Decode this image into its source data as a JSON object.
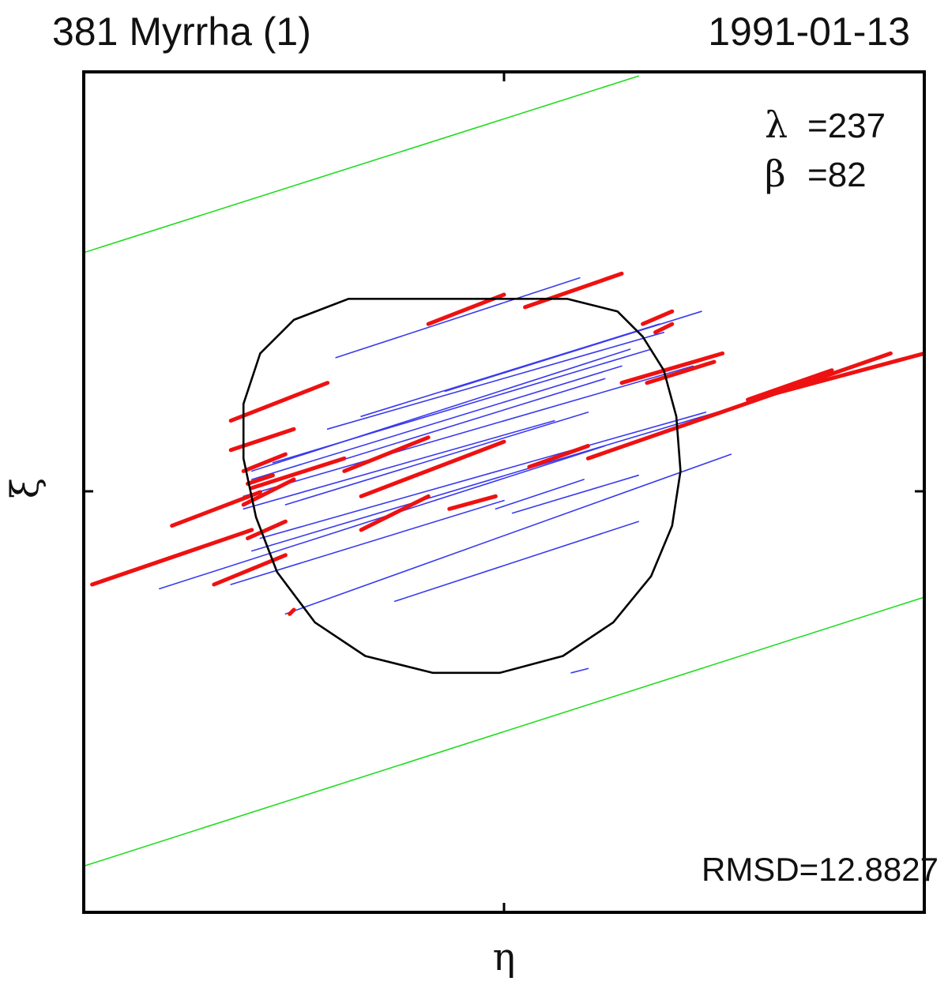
{
  "header": {
    "title_left": "381 Myrrha  (1)",
    "title_right": "1991-01-13"
  },
  "chart_data": {
    "type": "line",
    "title": "381 Myrrha  (1)",
    "date": "1991-01-13",
    "xlabel": "η",
    "ylabel": "ξ",
    "grid": false,
    "tick_labels": false,
    "annotations": {
      "lambda_label": "λ",
      "lambda_value": "=237",
      "beta_label": "β",
      "beta_value": "=82",
      "rmsd": "RMSD=12.8827"
    },
    "xlim": [
      -100,
      100
    ],
    "ylim": [
      -100,
      100
    ],
    "colors": {
      "profile": "#000000",
      "chord_fit": "#3a3aee",
      "chord_error": "#ee1111",
      "limits": "#22dd22"
    },
    "profile": [
      [
        15,
        46
      ],
      [
        27,
        43
      ],
      [
        33,
        37
      ],
      [
        38,
        29
      ],
      [
        41,
        18
      ],
      [
        42,
        5
      ],
      [
        40,
        -8
      ],
      [
        35,
        -20
      ],
      [
        26,
        -31
      ],
      [
        14,
        -39
      ],
      [
        -1,
        -43
      ],
      [
        -17,
        -43
      ],
      [
        -33,
        -39
      ],
      [
        -45,
        -31
      ],
      [
        -54,
        -19
      ],
      [
        -59,
        -6
      ],
      [
        -62,
        8
      ],
      [
        -62,
        21
      ],
      [
        -58,
        33
      ],
      [
        -50,
        41
      ],
      [
        -37,
        46
      ],
      [
        -15,
        46
      ],
      [
        15,
        46
      ]
    ],
    "limit_lines": [
      {
        "x": [
          -100,
          32
        ],
        "y": [
          57,
          99
        ]
      },
      {
        "x": [
          -100,
          100
        ],
        "y": [
          -89,
          -25
        ]
      }
    ],
    "chords": [
      {
        "x": [
          -40,
          18
        ],
        "y": [
          32,
          51
        ]
      },
      {
        "x": [
          -14,
          47
        ],
        "y": [
          24,
          43
        ]
      },
      {
        "x": [
          -42,
          38
        ],
        "y": [
          15,
          38
        ]
      },
      {
        "x": [
          -34,
          37
        ],
        "y": [
          18,
          40
        ]
      },
      {
        "x": [
          -55,
          35
        ],
        "y": [
          7,
          34
        ]
      },
      {
        "x": [
          -60,
          30
        ],
        "y": [
          5,
          34
        ]
      },
      {
        "x": [
          -60,
          28
        ],
        "y": [
          3,
          30
        ]
      },
      {
        "x": [
          -60,
          24
        ],
        "y": [
          1,
          27
        ]
      },
      {
        "x": [
          -62,
          45
        ],
        "y": [
          -1,
          30
        ]
      },
      {
        "x": [
          -52,
          20
        ],
        "y": [
          -3,
          19
        ]
      },
      {
        "x": [
          -62,
          12
        ],
        "y": [
          -4,
          17
        ]
      },
      {
        "x": [
          -58,
          48
        ],
        "y": [
          -11,
          19
        ]
      },
      {
        "x": [
          -60,
          54
        ],
        "y": [
          -14,
          20
        ]
      },
      {
        "x": [
          -82,
          24
        ],
        "y": [
          -23,
          11
        ]
      },
      {
        "x": [
          -65,
          0
        ],
        "y": [
          -22,
          -2
        ]
      },
      {
        "x": [
          -52,
          54
        ],
        "y": [
          -29,
          9
        ]
      },
      {
        "x": [
          -26,
          32
        ],
        "y": [
          -26,
          -7
        ]
      },
      {
        "x": [
          -2,
          19
        ],
        "y": [
          -4,
          3
        ]
      },
      {
        "x": [
          2,
          32
        ],
        "y": [
          -5,
          4
        ]
      },
      {
        "x": [
          16,
          20
        ],
        "y": [
          -43,
          -42
        ]
      }
    ],
    "error_bars": [
      {
        "x": [
          -65,
          -42
        ],
        "y": [
          17,
          26
        ]
      },
      {
        "x": [
          -65,
          -50
        ],
        "y": [
          10,
          15
        ]
      },
      {
        "x": [
          -62,
          -52
        ],
        "y": [
          5,
          9
        ]
      },
      {
        "x": [
          -61,
          -55
        ],
        "y": [
          2,
          4
        ]
      },
      {
        "x": [
          -62,
          -50
        ],
        "y": [
          -3,
          3
        ]
      },
      {
        "x": [
          -79,
          -58
        ],
        "y": [
          -8,
          0
        ]
      },
      {
        "x": [
          -98,
          -60
        ],
        "y": [
          -22,
          -9
        ]
      },
      {
        "x": [
          -69,
          -52
        ],
        "y": [
          -22,
          -15
        ]
      },
      {
        "x": [
          -61,
          -52
        ],
        "y": [
          -11,
          -7
        ]
      },
      {
        "x": [
          -60,
          -38
        ],
        "y": [
          1,
          8
        ]
      },
      {
        "x": [
          -38,
          -18
        ],
        "y": [
          5,
          13
        ]
      },
      {
        "x": [
          -34,
          0
        ],
        "y": [
          -1,
          12
        ]
      },
      {
        "x": [
          -34,
          -18
        ],
        "y": [
          -9,
          -1
        ]
      },
      {
        "x": [
          -13,
          -2
        ],
        "y": [
          -4,
          -1
        ]
      },
      {
        "x": [
          6,
          20
        ],
        "y": [
          6,
          11
        ]
      },
      {
        "x": [
          5,
          28
        ],
        "y": [
          44,
          52
        ]
      },
      {
        "x": [
          -18,
          0
        ],
        "y": [
          40,
          47
        ]
      },
      {
        "x": [
          33,
          40
        ],
        "y": [
          40,
          43
        ]
      },
      {
        "x": [
          36,
          40
        ],
        "y": [
          38,
          40
        ]
      },
      {
        "x": [
          28,
          52
        ],
        "y": [
          26,
          33
        ]
      },
      {
        "x": [
          34,
          50
        ],
        "y": [
          26,
          31
        ]
      },
      {
        "x": [
          58,
          78
        ],
        "y": [
          22,
          29
        ]
      },
      {
        "x": [
          20,
          92
        ],
        "y": [
          8,
          33
        ]
      },
      {
        "x": [
          59,
          100
        ],
        "y": [
          22,
          33
        ]
      },
      {
        "x": [
          -51,
          -50
        ],
        "y": [
          -29,
          -28
        ]
      }
    ]
  }
}
